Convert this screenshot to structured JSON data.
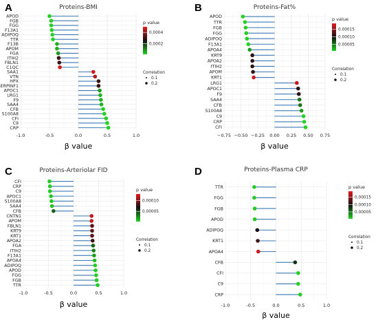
{
  "chart_data": [
    {
      "panel": "A",
      "type": "lollipop",
      "title": "Proteins-BMI",
      "xlabel": "β value",
      "xlim": [
        -1.0,
        1.0
      ],
      "xticks": [
        "-1.0",
        "-0.5",
        "0.0",
        "0.5",
        "1.0"
      ],
      "categories": [
        "APOD",
        "FGB",
        "FGG",
        "F13A1",
        "ADIPOQ",
        "TTR",
        "F13B",
        "APOM",
        "FGA",
        "ITIH2",
        "FBLN1",
        "C1QC",
        "SAA1",
        "VTN",
        "HPX",
        "SERPINF1",
        "APOC1",
        "LRG1",
        "F9",
        "SAA4",
        "CFB",
        "S100A8",
        "CFI",
        "C9",
        "CRP"
      ],
      "values": [
        -0.5,
        -0.47,
        -0.47,
        -0.46,
        -0.45,
        -0.44,
        -0.37,
        -0.37,
        -0.35,
        -0.34,
        -0.33,
        -0.32,
        0.26,
        0.29,
        0.35,
        0.35,
        0.37,
        0.38,
        0.39,
        0.4,
        0.43,
        0.45,
        0.48,
        0.5,
        0.52
      ],
      "p_values": [
        1e-05,
        1e-05,
        1e-05,
        1e-05,
        1e-05,
        1e-05,
        5e-05,
        5e-05,
        8e-05,
        0.0003,
        0.0003,
        0.00048,
        0.00048,
        0.00045,
        0.0003,
        0.0003,
        8e-05,
        5e-05,
        5e-05,
        5e-05,
        1e-05,
        1e-05,
        1e-05,
        1e-05,
        1e-05
      ],
      "legend": {
        "color_title": "p value",
        "color_ticks": [
          0.0004,
          0.0002
        ],
        "color_tick_labels": [
          "0.0004",
          "0.0002"
        ],
        "color_range": [
          1e-05,
          0.0005
        ],
        "size_title": "Correlation",
        "size_labels": [
          "0.1",
          "0.2"
        ]
      }
    },
    {
      "panel": "B",
      "type": "lollipop",
      "title": "Proteins-Fat%",
      "xlabel": "β value",
      "xlim": [
        -0.75,
        0.75
      ],
      "xticks": [
        "−0.75",
        "−0.50",
        "−0.25",
        "0.00",
        "0.25",
        "0.50",
        "0.75"
      ],
      "categories": [
        "APOD",
        "TTR",
        "FGB",
        "FGG",
        "ADIPOQ",
        "F13A1",
        "APOA4",
        "KRT9",
        "APOA2",
        "ITIH2",
        "APOM",
        "KRT1",
        "LRG1",
        "APOC1",
        "F9",
        "SAA4",
        "CFB",
        "S100A8",
        "C9",
        "CRP",
        "CFI"
      ],
      "values": [
        -0.47,
        -0.44,
        -0.43,
        -0.42,
        -0.41,
        -0.39,
        -0.37,
        -0.33,
        -0.33,
        -0.33,
        -0.32,
        -0.31,
        0.33,
        0.35,
        0.36,
        0.37,
        0.38,
        0.4,
        0.43,
        0.44,
        0.46
      ],
      "p_values": [
        5e-06,
        5e-06,
        5e-06,
        5e-06,
        5e-06,
        5e-06,
        3e-05,
        0.00011,
        0.00011,
        0.00011,
        0.00011,
        0.00018,
        0.00018,
        0.00011,
        0.00011,
        5e-05,
        5e-05,
        3e-05,
        5e-06,
        5e-06,
        5e-06
      ],
      "legend": {
        "color_title": "p value",
        "color_ticks": [
          0.00015,
          0.0001,
          5e-05
        ],
        "color_tick_labels": [
          "0.00015",
          "0.00010",
          "0.00005"
        ],
        "color_range": [
          5e-06,
          0.00019
        ],
        "size_title": "Correlation",
        "size_labels": [
          "0.1",
          "0.2"
        ]
      }
    },
    {
      "panel": "C",
      "type": "lollipop",
      "title": "Proteins-Arteriolar FID",
      "xlabel": "β value",
      "xlim": [
        -1.0,
        1.0
      ],
      "xticks": [
        "-1.0",
        "-0.5",
        "0.0",
        "0.5",
        "1.0"
      ],
      "categories": [
        "CFI",
        "CRP",
        "C9",
        "APOC1",
        "S100A8",
        "SAA4",
        "CFB",
        "CNTN1",
        "APOM",
        "FBLN1",
        "KRT9",
        "KRT1",
        "APOA2",
        "FGA",
        "ITIH2",
        "F13A1",
        "APOA4",
        "ADIPOQ",
        "APOD",
        "FGG",
        "FGB",
        "TTR"
      ],
      "values": [
        -0.48,
        -0.47,
        -0.47,
        -0.45,
        -0.44,
        -0.43,
        -0.4,
        0.36,
        0.36,
        0.37,
        0.37,
        0.37,
        0.38,
        0.39,
        0.4,
        0.41,
        0.42,
        0.43,
        0.44,
        0.45,
        0.46,
        0.48
      ],
      "p_values": [
        5e-06,
        5e-06,
        5e-06,
        5e-06,
        5e-06,
        8e-06,
        4e-05,
        0.00012,
        0.00012,
        9e-05,
        9e-05,
        9e-05,
        8e-05,
        4e-05,
        3e-05,
        2e-05,
        1e-05,
        5e-06,
        5e-06,
        5e-06,
        5e-06,
        5e-06
      ],
      "legend": {
        "color_title": "p value",
        "color_ticks": [
          0.0001,
          5e-05
        ],
        "color_tick_labels": [
          "0.00010",
          "0.00005"
        ],
        "color_range": [
          3e-06,
          0.00013
        ],
        "size_title": "Correlation",
        "size_labels": [
          "0.1",
          "0.2"
        ]
      }
    },
    {
      "panel": "D",
      "type": "lollipop",
      "title": "Proteins-Plasma CRP",
      "xlabel": "β value",
      "xlim": [
        -1.0,
        1.0
      ],
      "xticks": [
        "-1.0",
        "-0.5",
        "0.0",
        "0.5",
        "1.0"
      ],
      "categories": [
        "TTR",
        "FGG",
        "FGB",
        "APOD",
        "ADIPOQ",
        "KRT1",
        "APOA4",
        "CFB",
        "CFI",
        "C9",
        "CRP"
      ],
      "values": [
        -0.43,
        -0.43,
        -0.42,
        -0.42,
        -0.37,
        -0.36,
        -0.35,
        0.38,
        0.44,
        0.44,
        0.48
      ],
      "p_values": [
        5e-06,
        5e-06,
        5e-06,
        5e-06,
        0.0001,
        0.00012,
        0.00018,
        8e-05,
        5e-06,
        5e-06,
        5e-06
      ],
      "legend": {
        "color_title": "p value",
        "color_ticks": [
          0.00015,
          0.0001,
          5e-05
        ],
        "color_tick_labels": [
          "0.00015",
          "0.00010",
          "0.00005"
        ],
        "color_range": [
          3e-06,
          0.00019
        ],
        "size_title": "Correlation",
        "size_labels": [
          "0.1",
          "0.2"
        ]
      }
    }
  ],
  "colors": {
    "stem": "#3a78b5",
    "grid": "#e4e4e4",
    "low_p": "#21d21f",
    "mid_p": "#111111",
    "high_p": "#e31a1c"
  }
}
